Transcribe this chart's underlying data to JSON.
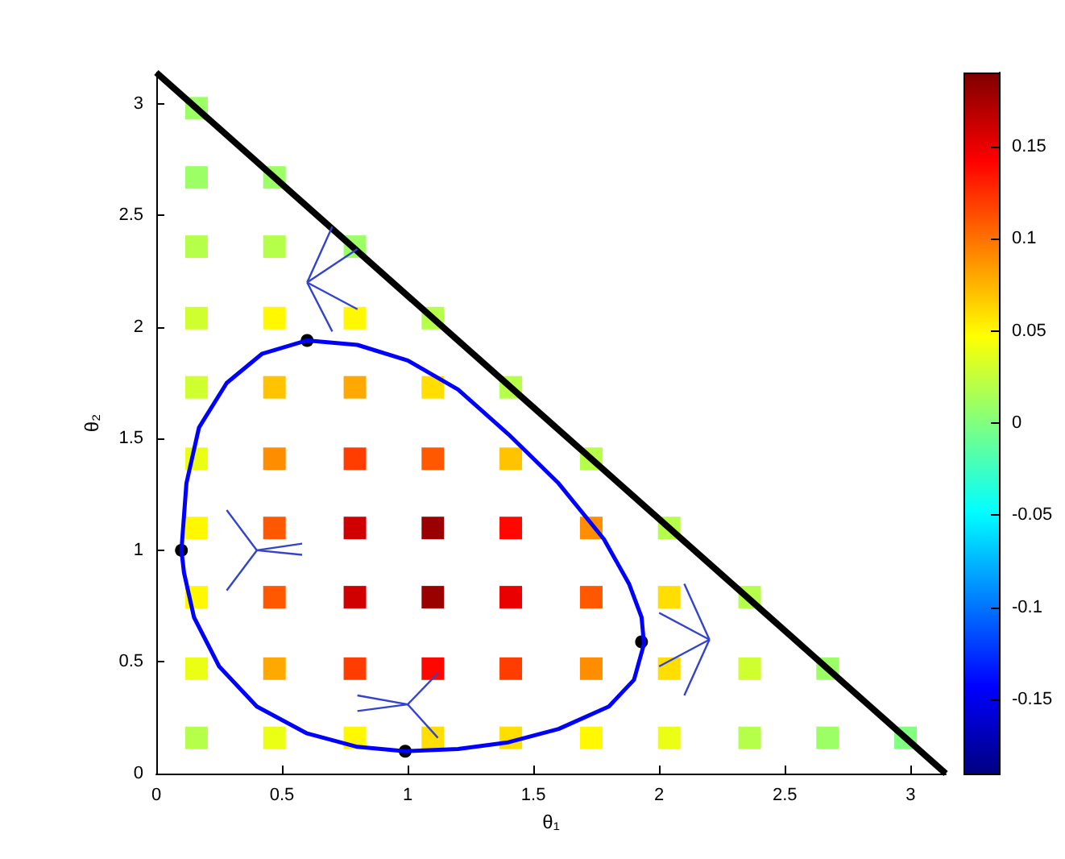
{
  "chart_data": {
    "type": "scatter",
    "xlabel": "θ₁",
    "ylabel": "θ₂",
    "clim": [
      -0.19,
      0.19
    ],
    "cticks": [
      -0.15,
      -0.1,
      -0.05,
      0,
      0.05,
      0.1,
      0.15
    ],
    "xlim": [
      0,
      3.14
    ],
    "xticks": [
      0,
      0.5,
      1,
      1.5,
      2,
      2.5,
      3
    ],
    "ylim": [
      0,
      3.14
    ],
    "yticks": [
      0,
      0.5,
      1,
      1.5,
      2,
      2.5,
      3
    ],
    "series": [
      {
        "type": "scatter",
        "marker": "square",
        "x": [
          0.16,
          0.16,
          0.47,
          0.16,
          0.47,
          0.79,
          0.16,
          0.47,
          0.79,
          1.1,
          0.16,
          0.47,
          0.79,
          1.1,
          1.41,
          0.16,
          0.47,
          0.79,
          1.1,
          1.41,
          1.73,
          0.16,
          0.47,
          0.79,
          1.1,
          1.41,
          1.73,
          2.04,
          0.16,
          0.47,
          0.79,
          1.1,
          1.41,
          1.73,
          2.04,
          2.36,
          0.16,
          0.47,
          0.79,
          1.1,
          1.41,
          1.73,
          2.04,
          2.36,
          2.67,
          0.16,
          0.47,
          0.79,
          1.1,
          1.41,
          1.73,
          2.04,
          2.36,
          2.67,
          2.98
        ],
        "values": [
          2.98,
          2.67,
          2.67,
          2.36,
          2.36,
          2.36,
          2.04,
          2.04,
          2.04,
          2.04,
          1.73,
          1.73,
          1.73,
          1.73,
          1.73,
          1.41,
          1.41,
          1.41,
          1.41,
          1.41,
          1.41,
          1.1,
          1.1,
          1.1,
          1.1,
          1.1,
          1.1,
          1.1,
          0.79,
          0.79,
          0.79,
          0.79,
          0.79,
          0.79,
          0.79,
          0.79,
          0.47,
          0.47,
          0.47,
          0.47,
          0.47,
          0.47,
          0.47,
          0.47,
          0.47,
          0.16,
          0.16,
          0.16,
          0.16,
          0.16,
          0.16,
          0.16,
          0.16,
          0.16,
          0.16
        ],
        "colors": [
          "#9bff65",
          "#9bff65",
          "#9bff65",
          "#b5ff4a",
          "#b5ff4a",
          "#9bff65",
          "#d0ff2f",
          "#fff800",
          "#fff800",
          "#b5ff4a",
          "#d0ff2f",
          "#ffc300",
          "#ffa800",
          "#ffde00",
          "#b5ff4a",
          "#ebff14",
          "#ff8d00",
          "#ff3d00",
          "#ff5800",
          "#ffc300",
          "#b5ff4a",
          "#fff800",
          "#ff5800",
          "#d00000",
          "#9b0000",
          "#ff0700",
          "#ff8d00",
          "#b5ff4a",
          "#fff800",
          "#ff5800",
          "#d00000",
          "#9b0000",
          "#eb0000",
          "#ff5800",
          "#ffde00",
          "#b5ff4a",
          "#ebff14",
          "#ffa800",
          "#ff3d00",
          "#ff0700",
          "#ff3d00",
          "#ff8d00",
          "#ffde00",
          "#d0ff2f",
          "#9bff65",
          "#b5ff4a",
          "#ebff14",
          "#fff800",
          "#ffde00",
          "#ffde00",
          "#fff800",
          "#ebff14",
          "#b5ff4a",
          "#9bff65",
          "#80ff80"
        ]
      },
      {
        "type": "line",
        "color": "#000000",
        "marker": "none",
        "x": [
          0,
          3.14
        ],
        "values": [
          3.14,
          0
        ]
      },
      {
        "type": "scatter",
        "color": "#000000",
        "marker": "circle",
        "x": [
          0.6,
          0.1,
          0.99,
          1.93
        ],
        "values": [
          1.94,
          1.0,
          0.1,
          0.59
        ]
      }
    ]
  }
}
